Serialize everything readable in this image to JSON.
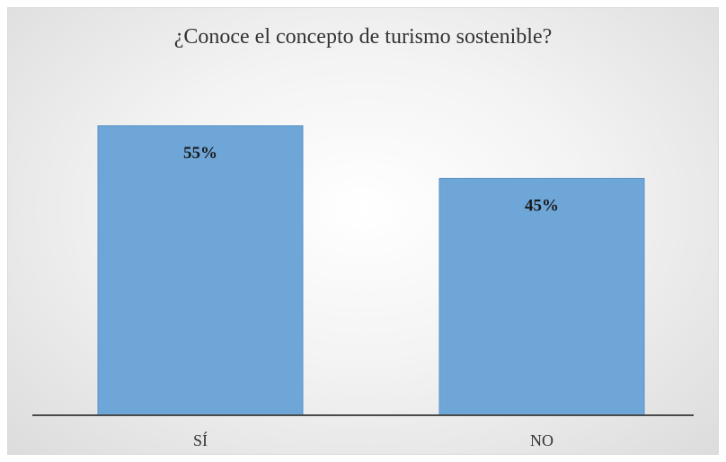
{
  "chart_data": {
    "type": "bar",
    "title": "¿Conoce el concepto de turismo sostenible?",
    "categories": [
      "SÍ",
      "NO"
    ],
    "values": [
      55,
      45
    ],
    "data_labels": [
      "55%",
      "45%"
    ],
    "unit": "%",
    "ylim": [
      0,
      70
    ],
    "grid": false,
    "legend": "none",
    "bar_color": "#6fa6d8",
    "bar_border_color": "#5b93c9"
  }
}
